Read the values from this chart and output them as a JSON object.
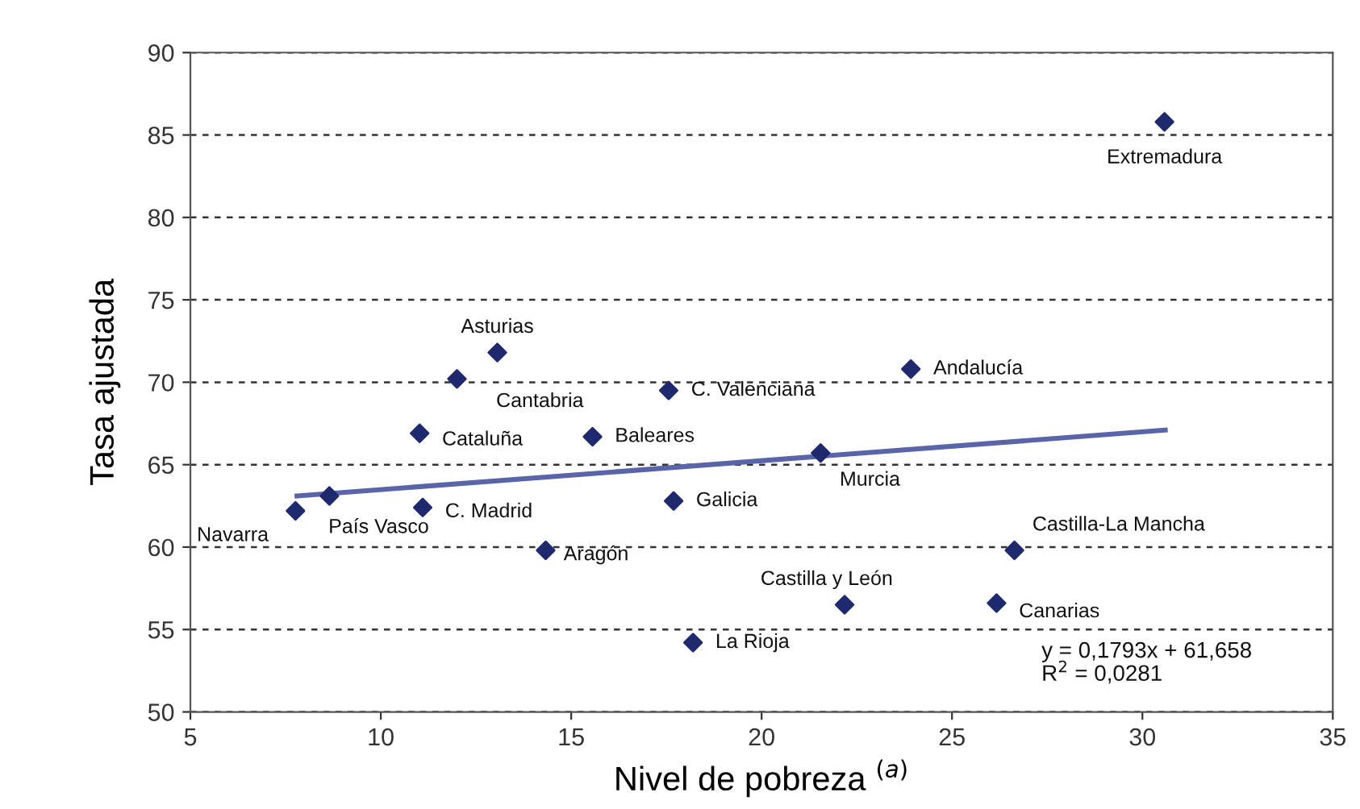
{
  "chart_data": {
    "type": "scatter",
    "xlabel": "Nivel de pobreza $^{(a)}$",
    "ylabel": "Tasa ajustada",
    "xlim": [
      5,
      35
    ],
    "xticks": [
      5,
      10,
      15,
      20,
      25,
      30,
      35
    ],
    "ylim": [
      50,
      90
    ],
    "yticks": [
      50,
      55,
      60,
      65,
      70,
      75,
      80,
      85,
      90
    ],
    "grid": "y",
    "series": [
      {
        "marker": "diamond",
        "color": "#1f2a6e",
        "x": [
          30.58,
          23.92,
          13.06,
          12.0,
          17.56,
          11.02,
          15.56,
          21.55,
          7.76,
          8.65,
          11.1,
          17.69,
          14.33,
          26.64,
          22.18,
          26.17,
          18.2
        ],
        "values": [
          85.8,
          70.8,
          71.8,
          70.2,
          69.5,
          66.9,
          66.7,
          65.7,
          62.2,
          63.1,
          62.4,
          62.8,
          59.8,
          59.8,
          56.5,
          56.6,
          54.2
        ]
      },
      {
        "type": "line",
        "color": "#5a64a8",
        "x": [
          7.8,
          30.6
        ],
        "values": [
          63.1,
          67.1
        ]
      }
    ],
    "annotations": [
      {
        "text": "Extremadura",
        "x": 30.58,
        "y": 85.8
      },
      {
        "text": "Andalucía",
        "x": 23.92,
        "y": 70.8
      },
      {
        "text": "Asturias",
        "x": 13.06,
        "y": 71.8
      },
      {
        "text": "Cantabria",
        "x": 12.0,
        "y": 70.2
      },
      {
        "text": "C. Valenciana",
        "x": 17.56,
        "y": 69.5
      },
      {
        "text": "Cataluña",
        "x": 11.02,
        "y": 66.9
      },
      {
        "text": "Baleares",
        "x": 15.56,
        "y": 66.7
      },
      {
        "text": "Murcia",
        "x": 21.55,
        "y": 65.7
      },
      {
        "text": "Navarra",
        "x": 7.76,
        "y": 62.2
      },
      {
        "text": "País Vasco",
        "x": 8.65,
        "y": 63.1
      },
      {
        "text": "C. Madrid",
        "x": 11.1,
        "y": 62.4
      },
      {
        "text": "Galicia",
        "x": 17.69,
        "y": 62.8
      },
      {
        "text": "Aragón",
        "x": 14.33,
        "y": 59.8
      },
      {
        "text": "Castilla-La Mancha",
        "x": 26.64,
        "y": 59.8
      },
      {
        "text": "Castilla y León",
        "x": 22.18,
        "y": 56.5
      },
      {
        "text": "Canarias",
        "x": 26.17,
        "y": 56.6
      },
      {
        "text": "La Rioja",
        "x": 18.2,
        "y": 54.2
      },
      "y = 0,1793x + 61,658\nR$^{2}$ = 0,0281"
    ]
  }
}
